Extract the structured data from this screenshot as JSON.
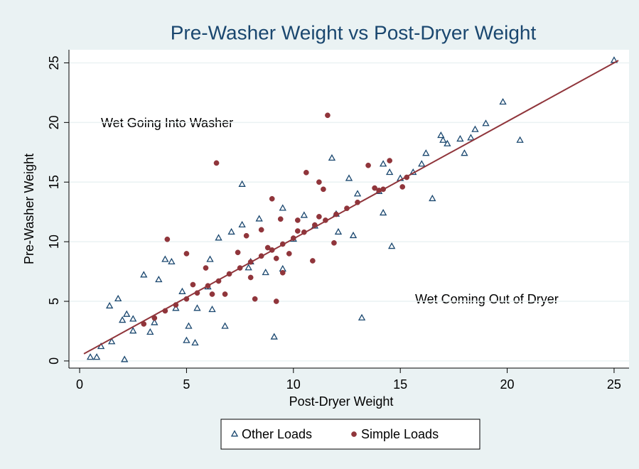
{
  "chart_data": {
    "type": "scatter",
    "title": "Pre-Washer Weight vs Post-Dryer Weight",
    "x_label": "Post-Dryer Weight",
    "y_label": "Pre-Washer Weight",
    "annotations": [
      "Wet Going Into Washer",
      "Wet Coming Out of Dryer"
    ],
    "xlim": [
      -0.5,
      25.7
    ],
    "ylim": [
      -0.6,
      26.1
    ],
    "xticks": [
      0,
      5,
      10,
      15,
      20,
      25
    ],
    "yticks": [
      0,
      5,
      10,
      15,
      20,
      25
    ],
    "grid": true,
    "legend": "bottom",
    "series": [
      {
        "name": "Other Loads",
        "color": "#1a476f",
        "marker": "triangle",
        "x": [
          25,
          19.8,
          20.6,
          19,
          18.5,
          18.3,
          17.8,
          18,
          17.2,
          16.9,
          17,
          16.5,
          16.2,
          16,
          15.6,
          15,
          14.6,
          14.2,
          13.2,
          9.1,
          7.6,
          11.8,
          12.6,
          12.1,
          12.8,
          2.1,
          0.8,
          0.5,
          1.4,
          1.8,
          2.2,
          3,
          3.7,
          4,
          4.3,
          4.8,
          5,
          5.4,
          5.1,
          6.8,
          6.1,
          6.5,
          7.1,
          7.6,
          8.4,
          9.5,
          10.5,
          13,
          14,
          14.5,
          14.2,
          3.5,
          2.5,
          1,
          1.5,
          4.5,
          6,
          8,
          10,
          11,
          12,
          5.5,
          6.2,
          9.5,
          8.7,
          7.9,
          3.3,
          2,
          2.5
        ],
        "values": [
          25.2,
          21.7,
          18.5,
          19.9,
          19.4,
          18.7,
          18.6,
          17.4,
          18.2,
          18.9,
          18.5,
          13.6,
          17.4,
          16.5,
          15.8,
          15.3,
          9.6,
          12.4,
          3.6,
          2.0,
          14.8,
          17,
          15.3,
          10.8,
          10.5,
          0.1,
          0.3,
          0.3,
          4.6,
          5.2,
          3.9,
          7.2,
          6.8,
          8.5,
          8.3,
          5.8,
          1.7,
          1.5,
          2.9,
          2.9,
          8.5,
          10.3,
          10.8,
          11.4,
          11.9,
          12.8,
          12.2,
          14,
          14.2,
          15.8,
          16.5,
          3.2,
          2.5,
          1.2,
          1.6,
          4.4,
          6.2,
          8.3,
          10.2,
          11.3,
          12.3,
          4.4,
          4.3,
          7.7,
          7.4,
          7.8,
          2.4,
          3.4,
          3.5
        ]
      },
      {
        "name": "Simple Loads",
        "color": "#90353b",
        "marker": "circle",
        "x": [
          11.6,
          6.4,
          4.1,
          5,
          5.9,
          9.2,
          8.2,
          9.5,
          10.9,
          11.9,
          11.2,
          11.4,
          10.6,
          9,
          13.5,
          14.5,
          15.3,
          13.8,
          14.2,
          15.1,
          3,
          3.5,
          4,
          4.5,
          5,
          5.5,
          6,
          6.5,
          7,
          7.5,
          8,
          8.5,
          9,
          9.5,
          10,
          10.5,
          11,
          11.5,
          12,
          12.5,
          13,
          14,
          7.8,
          8.5,
          6.8,
          7.4,
          8,
          9.8,
          10.2,
          9.4,
          10.2,
          5.3,
          6.2,
          8.8,
          9.2,
          11.2
        ],
        "values": [
          20.6,
          16.6,
          10.2,
          9,
          7.8,
          5,
          5.2,
          7.4,
          8.4,
          9.9,
          15,
          14.4,
          15.8,
          13.6,
          16.4,
          16.8,
          15.4,
          14.5,
          14.4,
          14.6,
          3.1,
          3.6,
          4.2,
          4.7,
          5.2,
          5.7,
          6.3,
          6.7,
          7.3,
          7.8,
          8.3,
          8.8,
          9.3,
          9.8,
          10.3,
          10.8,
          11.4,
          11.8,
          12.3,
          12.8,
          13.3,
          14.3,
          10.5,
          11,
          5.6,
          9.1,
          7,
          9,
          11.8,
          11.9,
          10.9,
          6.4,
          5.6,
          9.5,
          8.6,
          12.1
        ]
      }
    ],
    "fit_line": {
      "color": "#90353b",
      "x": [
        0.2,
        25.2
      ],
      "values": [
        0.6,
        25.2
      ]
    }
  }
}
